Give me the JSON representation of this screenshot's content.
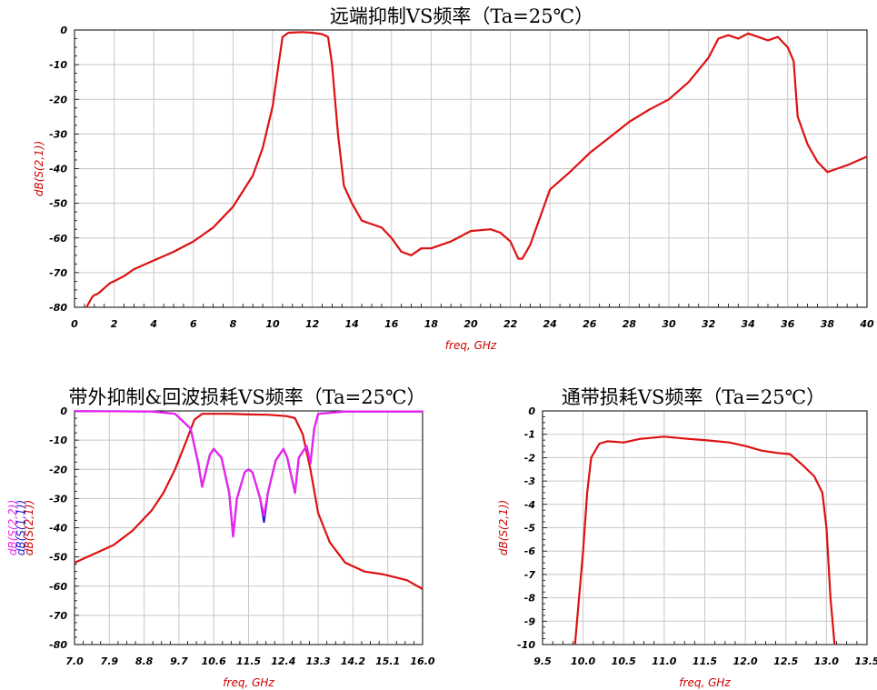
{
  "chart_data": [
    {
      "type": "line",
      "title": "远端抑制VS频率（Ta=25℃）",
      "xlabel": "freq, GHz",
      "ylabel": "dB(S(2,1))",
      "xlim": [
        0,
        40
      ],
      "ylim": [
        -80,
        0
      ],
      "x_ticks": [
        "0",
        "2",
        "4",
        "6",
        "8",
        "10",
        "12",
        "14",
        "16",
        "18",
        "20",
        "22",
        "24",
        "26",
        "28",
        "30",
        "32",
        "34",
        "36",
        "38",
        "40"
      ],
      "y_ticks": [
        "0",
        "-10",
        "-20",
        "-30",
        "-40",
        "-50",
        "-60",
        "-70",
        "-80"
      ],
      "grid": true,
      "series": [
        {
          "color": "#dd1111",
          "points": [
            [
              0.6,
              -80
            ],
            [
              0.7,
              -79
            ],
            [
              0.8,
              -78
            ],
            [
              0.9,
              -77
            ],
            [
              1.0,
              -76.5
            ],
            [
              1.2,
              -76
            ],
            [
              1.4,
              -75
            ],
            [
              1.6,
              -74
            ],
            [
              1.8,
              -73
            ],
            [
              2,
              -72.5
            ],
            [
              2.5,
              -71
            ],
            [
              3,
              -69
            ],
            [
              4,
              -66.5
            ],
            [
              5,
              -64
            ],
            [
              6,
              -61
            ],
            [
              7,
              -57
            ],
            [
              8,
              -51
            ],
            [
              9,
              -42
            ],
            [
              9.5,
              -34
            ],
            [
              10,
              -22
            ],
            [
              10.3,
              -10
            ],
            [
              10.5,
              -2
            ],
            [
              10.8,
              -0.8
            ],
            [
              11.5,
              -0.6
            ],
            [
              12,
              -0.8
            ],
            [
              12.5,
              -1.2
            ],
            [
              12.8,
              -2
            ],
            [
              13,
              -10
            ],
            [
              13.3,
              -30
            ],
            [
              13.6,
              -45
            ],
            [
              14,
              -50
            ],
            [
              14.5,
              -55
            ],
            [
              15,
              -56
            ],
            [
              15.5,
              -57
            ],
            [
              16,
              -60
            ],
            [
              16.5,
              -64
            ],
            [
              17,
              -65
            ],
            [
              17.5,
              -63
            ],
            [
              18,
              -63
            ],
            [
              19,
              -61
            ],
            [
              20,
              -58
            ],
            [
              21,
              -57.5
            ],
            [
              21.5,
              -58.5
            ],
            [
              22,
              -61
            ],
            [
              22.4,
              -66
            ],
            [
              22.6,
              -66
            ],
            [
              23,
              -62
            ],
            [
              24,
              -46
            ],
            [
              25,
              -41
            ],
            [
              26,
              -35.5
            ],
            [
              27,
              -31
            ],
            [
              28,
              -26.5
            ],
            [
              29,
              -23
            ],
            [
              30,
              -20
            ],
            [
              31,
              -15
            ],
            [
              32,
              -8
            ],
            [
              32.5,
              -2.5
            ],
            [
              33,
              -1.5
            ],
            [
              33.5,
              -2.5
            ],
            [
              34,
              -1
            ],
            [
              34.5,
              -2
            ],
            [
              35,
              -3
            ],
            [
              35.5,
              -2
            ],
            [
              36,
              -5
            ],
            [
              36.3,
              -9
            ],
            [
              36.5,
              -25
            ],
            [
              37,
              -33
            ],
            [
              37.5,
              -38
            ],
            [
              38,
              -41
            ],
            [
              38.5,
              -40
            ],
            [
              39,
              -39
            ],
            [
              40,
              -36.5
            ]
          ]
        }
      ]
    },
    {
      "type": "line",
      "title": "带外抑制&回波损耗VS频率（Ta=25℃）",
      "xlabel": "freq, GHz",
      "ylabel": [
        "dB(S(2,2))",
        "dB(S(1,1))",
        "dB(S(2,1))"
      ],
      "xlim": [
        7.0,
        16.0
      ],
      "ylim": [
        -80,
        0
      ],
      "x_ticks": [
        "7.0",
        "7.9",
        "8.8",
        "9.7",
        "10.6",
        "11.5",
        "12.4",
        "13.3",
        "14.2",
        "15.1",
        "16.0"
      ],
      "y_ticks": [
        "0",
        "-10",
        "-20",
        "-30",
        "-40",
        "-50",
        "-60",
        "-70",
        "-80"
      ],
      "grid": true,
      "series": [
        {
          "color": "#dd1111",
          "points": [
            [
              7.0,
              -52
            ],
            [
              7.5,
              -49
            ],
            [
              8.0,
              -46
            ],
            [
              8.5,
              -41
            ],
            [
              9.0,
              -34
            ],
            [
              9.3,
              -28
            ],
            [
              9.6,
              -20
            ],
            [
              9.9,
              -10
            ],
            [
              10.1,
              -3
            ],
            [
              10.3,
              -1
            ],
            [
              11.0,
              -1
            ],
            [
              11.5,
              -1.2
            ],
            [
              12.0,
              -1.3
            ],
            [
              12.5,
              -1.8
            ],
            [
              12.7,
              -2.5
            ],
            [
              12.9,
              -8
            ],
            [
              13.1,
              -20
            ],
            [
              13.3,
              -35
            ],
            [
              13.6,
              -45
            ],
            [
              14.0,
              -52
            ],
            [
              14.5,
              -55
            ],
            [
              15.0,
              -56
            ],
            [
              15.3,
              -57
            ],
            [
              15.6,
              -58
            ],
            [
              16.0,
              -61
            ]
          ]
        },
        {
          "color": "#1a1acc",
          "points": [
            [
              7.0,
              -0.1
            ],
            [
              9.0,
              -0.2
            ],
            [
              9.6,
              -1
            ],
            [
              10.0,
              -6
            ],
            [
              10.2,
              -18
            ],
            [
              10.3,
              -26
            ],
            [
              10.5,
              -15
            ],
            [
              10.6,
              -13
            ],
            [
              10.8,
              -16
            ],
            [
              11.0,
              -28
            ],
            [
              11.1,
              -43
            ],
            [
              11.2,
              -30
            ],
            [
              11.4,
              -21
            ],
            [
              11.5,
              -20
            ],
            [
              11.6,
              -21
            ],
            [
              11.8,
              -30
            ],
            [
              11.9,
              -38
            ],
            [
              12.0,
              -28
            ],
            [
              12.2,
              -17
            ],
            [
              12.4,
              -13
            ],
            [
              12.5,
              -16
            ],
            [
              12.7,
              -28
            ],
            [
              12.8,
              -16
            ],
            [
              13.0,
              -12
            ],
            [
              13.1,
              -18
            ],
            [
              13.2,
              -6
            ],
            [
              13.3,
              -1
            ],
            [
              14.0,
              -0.2
            ],
            [
              16.0,
              -0.2
            ]
          ]
        },
        {
          "color": "#ee22ee",
          "points": [
            [
              7.0,
              -0.1
            ],
            [
              9.0,
              -0.2
            ],
            [
              9.6,
              -1
            ],
            [
              10.0,
              -6
            ],
            [
              10.2,
              -18
            ],
            [
              10.3,
              -26
            ],
            [
              10.5,
              -15
            ],
            [
              10.6,
              -13
            ],
            [
              10.8,
              -16
            ],
            [
              11.0,
              -28
            ],
            [
              11.1,
              -43
            ],
            [
              11.2,
              -30
            ],
            [
              11.4,
              -21
            ],
            [
              11.5,
              -20
            ],
            [
              11.6,
              -21
            ],
            [
              11.8,
              -30
            ],
            [
              11.9,
              -36
            ],
            [
              12.0,
              -28
            ],
            [
              12.2,
              -17
            ],
            [
              12.4,
              -13
            ],
            [
              12.5,
              -16
            ],
            [
              12.7,
              -28
            ],
            [
              12.8,
              -16
            ],
            [
              13.0,
              -12
            ],
            [
              13.1,
              -18
            ],
            [
              13.2,
              -6
            ],
            [
              13.3,
              -1
            ],
            [
              14.0,
              -0.2
            ],
            [
              16.0,
              -0.2
            ]
          ]
        }
      ]
    },
    {
      "type": "line",
      "title": "通带损耗VS频率（Ta=25℃）",
      "xlabel": "freq, GHz",
      "ylabel": "dB(S(2,1))",
      "xlim": [
        9.5,
        13.5
      ],
      "ylim": [
        -10,
        0
      ],
      "x_ticks": [
        "9.5",
        "10.0",
        "10.5",
        "11.0",
        "11.5",
        "12.0",
        "12.5",
        "13.0",
        "13.5"
      ],
      "y_ticks": [
        "0",
        "-1",
        "-2",
        "-3",
        "-4",
        "-5",
        "-6",
        "-7",
        "-8",
        "-9",
        "-10"
      ],
      "grid": true,
      "series": [
        {
          "color": "#dd1111",
          "points": [
            [
              9.9,
              -10
            ],
            [
              10.0,
              -6
            ],
            [
              10.05,
              -3.5
            ],
            [
              10.1,
              -2
            ],
            [
              10.2,
              -1.4
            ],
            [
              10.3,
              -1.3
            ],
            [
              10.5,
              -1.35
            ],
            [
              10.7,
              -1.2
            ],
            [
              11.0,
              -1.1
            ],
            [
              11.3,
              -1.2
            ],
            [
              11.5,
              -1.25
            ],
            [
              11.8,
              -1.35
            ],
            [
              12.0,
              -1.5
            ],
            [
              12.2,
              -1.7
            ],
            [
              12.4,
              -1.8
            ],
            [
              12.55,
              -1.85
            ],
            [
              12.7,
              -2.3
            ],
            [
              12.85,
              -2.8
            ],
            [
              12.95,
              -3.5
            ],
            [
              13.0,
              -5
            ],
            [
              13.05,
              -8
            ],
            [
              13.1,
              -10
            ]
          ]
        }
      ]
    }
  ]
}
